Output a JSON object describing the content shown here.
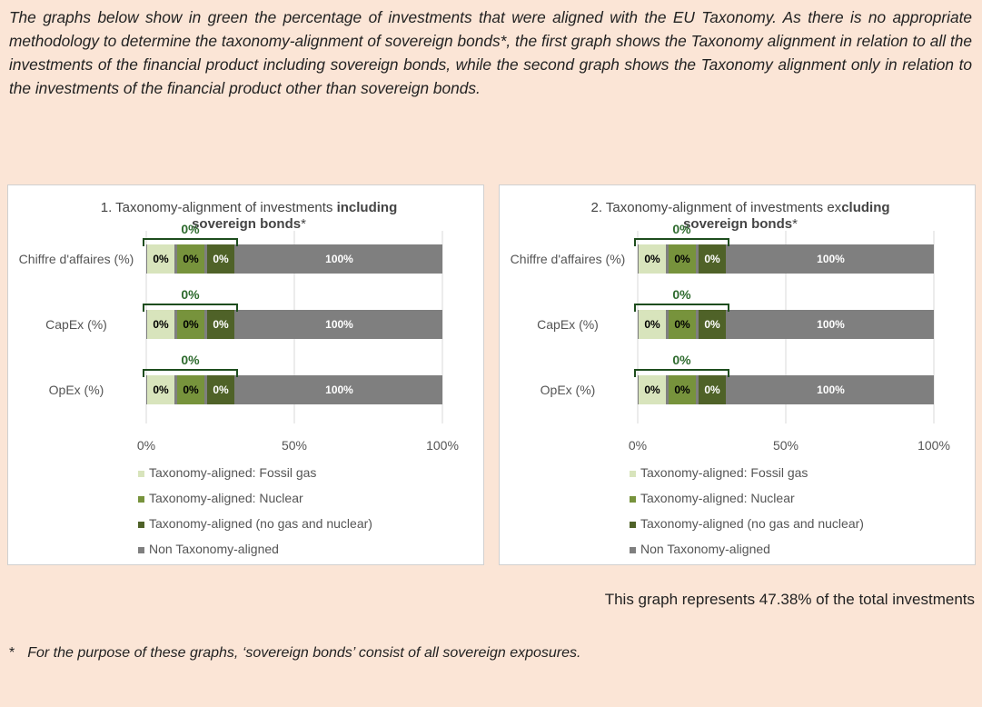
{
  "intro": "The graphs below show in green the percentage of investments that were aligned with the EU Taxonomy. As there is no appropriate methodology to determine the taxonomy-alignment of sovereign bonds*, the first graph shows the Taxonomy alignment in relation to all the investments of the financial product including sovereign bonds, while the second graph shows the Taxonomy alignment only in relation to the investments of the financial product other than sovereign bonds.",
  "chart_data": [
    {
      "type": "bar",
      "horizontal": true,
      "stacked": true,
      "title_parts": [
        {
          "text": "1. Taxonomy-alignment of investments ",
          "bold": false
        },
        {
          "text": "including sovereign bonds",
          "bold": true
        },
        {
          "text": "*",
          "bold": false
        }
      ],
      "categories": [
        "Chiffre d'affaires (%)",
        "CapEx (%)",
        "OpEx (%)"
      ],
      "series": [
        {
          "name": "Taxonomy-aligned: Fossil gas",
          "color": "#d8e4bc",
          "label_color": "#000",
          "values": [
            0,
            0,
            0
          ],
          "value_labels": [
            "0%",
            "0%",
            "0%"
          ]
        },
        {
          "name": "Taxonomy-aligned: Nuclear",
          "color": "#77933c",
          "label_color": "#000",
          "values": [
            0,
            0,
            0
          ],
          "value_labels": [
            "0%",
            "0%",
            "0%"
          ]
        },
        {
          "name": "Taxonomy-aligned (no gas and nuclear)",
          "color": "#4f6228",
          "label_color": "#fff",
          "values": [
            0,
            0,
            0
          ],
          "value_labels": [
            "0%",
            "0%",
            "0%"
          ]
        },
        {
          "name": "Non Taxonomy-aligned",
          "color": "#7f7f7f",
          "label_color": "#fff",
          "values": [
            100,
            100,
            100
          ],
          "value_labels": [
            "100%",
            "100%",
            "100%"
          ]
        }
      ],
      "aligned_total": {
        "color": "#1e4d1e",
        "values": [
          0,
          0,
          0
        ],
        "value_labels": [
          "0%",
          "0%",
          "0%"
        ]
      },
      "xlim": [
        0,
        100
      ],
      "xticks": [
        {
          "value": 0,
          "label": "0%"
        },
        {
          "value": 50,
          "label": "50%"
        },
        {
          "value": 100,
          "label": "100%"
        }
      ],
      "grid": true
    },
    {
      "type": "bar",
      "horizontal": true,
      "stacked": true,
      "title_parts": [
        {
          "text": "2. Taxonomy-alignment of investments ex",
          "bold": false
        },
        {
          "text": "cluding sovereign bonds",
          "bold": true
        },
        {
          "text": "*",
          "bold": false
        }
      ],
      "categories": [
        "Chiffre d'affaires (%)",
        "CapEx (%)",
        "OpEx (%)"
      ],
      "series": [
        {
          "name": "Taxonomy-aligned: Fossil gas",
          "color": "#d8e4bc",
          "label_color": "#000",
          "values": [
            0,
            0,
            0
          ],
          "value_labels": [
            "0%",
            "0%",
            "0%"
          ]
        },
        {
          "name": "Taxonomy-aligned: Nuclear",
          "color": "#77933c",
          "label_color": "#000",
          "values": [
            0,
            0,
            0
          ],
          "value_labels": [
            "0%",
            "0%",
            "0%"
          ]
        },
        {
          "name": "Taxonomy-aligned (no gas and nuclear)",
          "color": "#4f6228",
          "label_color": "#fff",
          "values": [
            0,
            0,
            0
          ],
          "value_labels": [
            "0%",
            "0%",
            "0%"
          ]
        },
        {
          "name": "Non Taxonomy-aligned",
          "color": "#7f7f7f",
          "label_color": "#fff",
          "values": [
            100,
            100,
            100
          ],
          "value_labels": [
            "100%",
            "100%",
            "100%"
          ]
        }
      ],
      "aligned_total": {
        "color": "#1e4d1e",
        "values": [
          0,
          0,
          0
        ],
        "value_labels": [
          "0%",
          "0%",
          "0%"
        ]
      },
      "xlim": [
        0,
        100
      ],
      "xticks": [
        {
          "value": 0,
          "label": "0%"
        },
        {
          "value": 50,
          "label": "50%"
        },
        {
          "value": 100,
          "label": "100%"
        }
      ],
      "grid": true
    }
  ],
  "note": "This graph represents 47.38% of the total investments",
  "footnote_marker": "*",
  "footnote": "For the purpose of these graphs, ‘sovereign bonds’ consist of all sovereign exposures."
}
